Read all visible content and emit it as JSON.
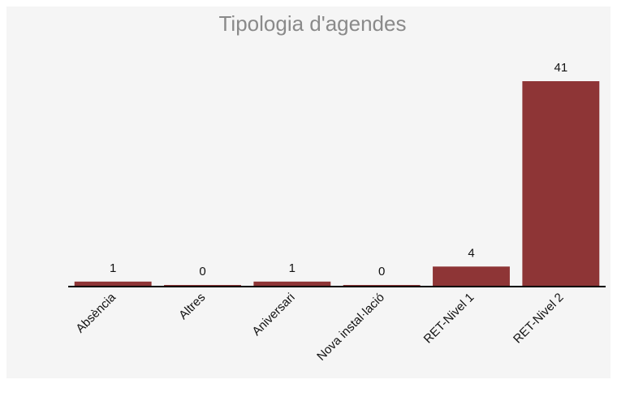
{
  "chart_data": {
    "type": "bar",
    "title": "Tipologia d'agendes",
    "categories": [
      "Absència",
      "Altres",
      "Aniversari",
      "Nova instal·lació",
      "RET-Nivel 1",
      "RET-Nivel 2"
    ],
    "values": [
      1,
      0,
      1,
      0,
      4,
      41
    ],
    "color": "#8e3536"
  }
}
